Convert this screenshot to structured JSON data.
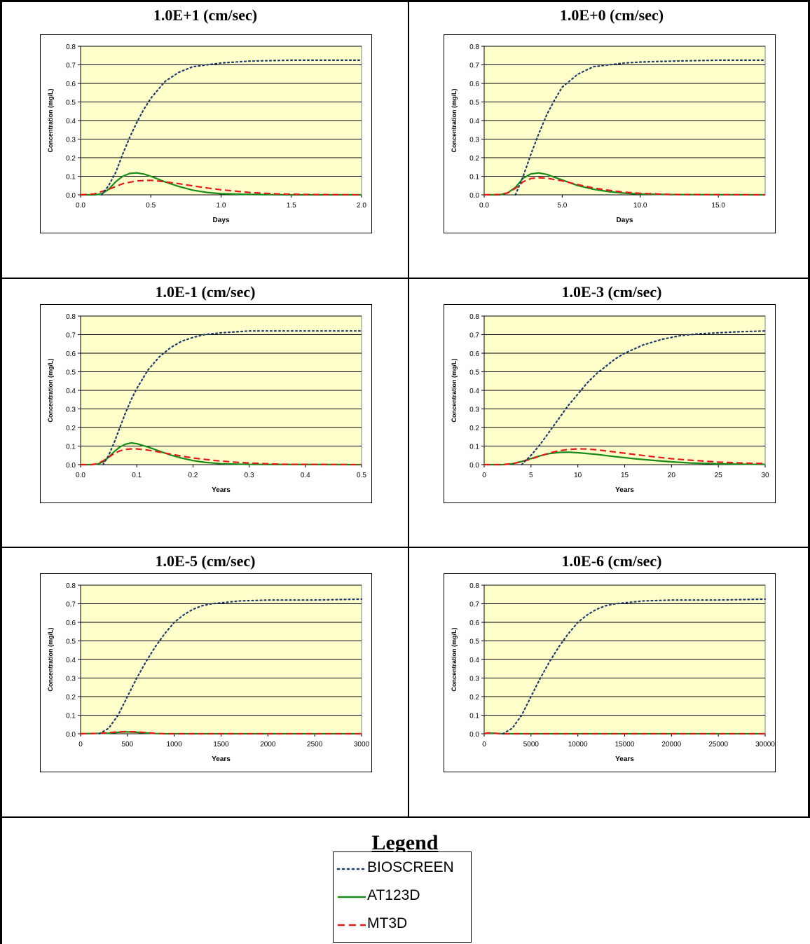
{
  "colors": {
    "plot_bg": "#FFFFCC",
    "bioscreen": "#1F3A68",
    "at123d": "#1A8A1A",
    "mt3d": "#E01B1B",
    "gridline": "#000000"
  },
  "legend": {
    "title": "Legend",
    "items": [
      {
        "label": "BIOSCREEN",
        "style": "dotted",
        "color": "#1F3A68"
      },
      {
        "label": "AT123D",
        "style": "solid",
        "color": "#1A8A1A"
      },
      {
        "label": "MT3D",
        "style": "dashed",
        "color": "#E01B1B"
      }
    ]
  },
  "chart_data": [
    {
      "type": "line",
      "title": "1.0E+1 (cm/sec)",
      "xlabel": "Days",
      "ylabel": "Concentration (mg/L)",
      "xlim": [
        0,
        2
      ],
      "ylim": [
        0,
        0.8
      ],
      "xticks": [
        0,
        0.5,
        1,
        1.5,
        2
      ],
      "xtick_labels": [
        "0.0",
        "0.5",
        "1.0",
        "1.5",
        "2.0"
      ],
      "yticks": [
        0,
        0.1,
        0.2,
        0.3,
        0.4,
        0.5,
        0.6,
        0.7,
        0.8
      ],
      "ytick_labels": [
        "0.0",
        "0.1",
        "0.2",
        "0.3",
        "0.4",
        "0.5",
        "0.6",
        "0.7",
        "0.8"
      ],
      "series": [
        {
          "name": "BIOSCREEN",
          "x": [
            0.15,
            0.2,
            0.25,
            0.3,
            0.35,
            0.4,
            0.45,
            0.5,
            0.6,
            0.7,
            0.8,
            0.9,
            1.0,
            1.2,
            1.5,
            2.0
          ],
          "y": [
            0.0,
            0.05,
            0.12,
            0.22,
            0.31,
            0.39,
            0.46,
            0.52,
            0.61,
            0.66,
            0.69,
            0.7,
            0.71,
            0.72,
            0.725,
            0.725
          ]
        },
        {
          "name": "AT123D",
          "x": [
            0.0,
            0.1,
            0.15,
            0.2,
            0.25,
            0.3,
            0.35,
            0.4,
            0.45,
            0.5,
            0.6,
            0.7,
            0.8,
            0.9,
            1.0,
            1.2,
            1.5,
            2.0
          ],
          "y": [
            0.0,
            0.0,
            0.005,
            0.03,
            0.07,
            0.1,
            0.115,
            0.118,
            0.112,
            0.1,
            0.07,
            0.045,
            0.025,
            0.013,
            0.006,
            0.002,
            0.0,
            0.0
          ]
        },
        {
          "name": "MT3D",
          "x": [
            0.0,
            0.1,
            0.2,
            0.3,
            0.4,
            0.5,
            0.6,
            0.7,
            0.8,
            0.9,
            1.0,
            1.2,
            1.4,
            1.6,
            2.0
          ],
          "y": [
            0.0,
            0.005,
            0.03,
            0.06,
            0.075,
            0.078,
            0.07,
            0.06,
            0.048,
            0.037,
            0.027,
            0.013,
            0.005,
            0.002,
            0.0
          ]
        }
      ]
    },
    {
      "type": "line",
      "title": "1.0E+0 (cm/sec)",
      "xlabel": "Days",
      "ylabel": "Concentration (mg/L)",
      "xlim": [
        0,
        18
      ],
      "ylim": [
        0,
        0.8
      ],
      "xticks": [
        0,
        5,
        10,
        15
      ],
      "xtick_labels": [
        "0.0",
        "5.0",
        "10.0",
        "15.0"
      ],
      "yticks": [
        0,
        0.1,
        0.2,
        0.3,
        0.4,
        0.5,
        0.6,
        0.7,
        0.8
      ],
      "ytick_labels": [
        "0.0",
        "0.1",
        "0.2",
        "0.3",
        "0.4",
        "0.5",
        "0.6",
        "0.7",
        "0.8"
      ],
      "series": [
        {
          "name": "BIOSCREEN",
          "x": [
            2.0,
            2.5,
            3.0,
            3.5,
            4.0,
            4.5,
            5.0,
            6.0,
            7.0,
            8.0,
            9.0,
            10.0,
            12.0,
            15.0,
            18.0
          ],
          "y": [
            0.0,
            0.1,
            0.22,
            0.33,
            0.43,
            0.51,
            0.58,
            0.65,
            0.69,
            0.7,
            0.71,
            0.715,
            0.72,
            0.725,
            0.725
          ]
        },
        {
          "name": "AT123D",
          "x": [
            0.0,
            1.0,
            1.5,
            2.0,
            2.5,
            3.0,
            3.5,
            4.0,
            5.0,
            6.0,
            7.0,
            8.0,
            9.0,
            10.0,
            12.0,
            18.0
          ],
          "y": [
            0.0,
            0.0,
            0.01,
            0.04,
            0.09,
            0.113,
            0.118,
            0.11,
            0.08,
            0.05,
            0.03,
            0.017,
            0.009,
            0.004,
            0.001,
            0.0
          ]
        },
        {
          "name": "MT3D",
          "x": [
            0.0,
            1.0,
            1.5,
            2.0,
            2.5,
            3.0,
            3.5,
            4.0,
            5.0,
            6.0,
            7.0,
            8.0,
            9.0,
            10.0,
            12.0,
            18.0
          ],
          "y": [
            0.0,
            0.002,
            0.01,
            0.035,
            0.07,
            0.088,
            0.092,
            0.09,
            0.075,
            0.055,
            0.037,
            0.024,
            0.014,
            0.008,
            0.002,
            0.0
          ]
        }
      ]
    },
    {
      "type": "line",
      "title": "1.0E-1 (cm/sec)",
      "xlabel": "Years",
      "ylabel": "Concentration (mg/L)",
      "xlim": [
        0,
        0.5
      ],
      "ylim": [
        0,
        0.8
      ],
      "xticks": [
        0,
        0.1,
        0.2,
        0.3,
        0.4,
        0.5
      ],
      "xtick_labels": [
        "0.0",
        "0.1",
        "0.2",
        "0.3",
        "0.4",
        "0.5"
      ],
      "yticks": [
        0,
        0.1,
        0.2,
        0.3,
        0.4,
        0.5,
        0.6,
        0.7,
        0.8
      ],
      "ytick_labels": [
        "0.0",
        "0.1",
        "0.2",
        "0.3",
        "0.4",
        "0.5",
        "0.6",
        "0.7",
        "0.8"
      ],
      "series": [
        {
          "name": "BIOSCREEN",
          "x": [
            0.04,
            0.05,
            0.06,
            0.07,
            0.08,
            0.09,
            0.1,
            0.12,
            0.14,
            0.16,
            0.18,
            0.2,
            0.22,
            0.25,
            0.3,
            0.4,
            0.5
          ],
          "y": [
            0.0,
            0.05,
            0.12,
            0.2,
            0.28,
            0.35,
            0.41,
            0.51,
            0.58,
            0.63,
            0.665,
            0.685,
            0.7,
            0.71,
            0.72,
            0.72,
            0.72
          ]
        },
        {
          "name": "AT123D",
          "x": [
            0.0,
            0.02,
            0.03,
            0.04,
            0.05,
            0.06,
            0.07,
            0.08,
            0.09,
            0.1,
            0.12,
            0.14,
            0.16,
            0.18,
            0.2,
            0.22,
            0.25,
            0.3,
            0.5
          ],
          "y": [
            0.0,
            0.0,
            0.003,
            0.015,
            0.04,
            0.07,
            0.095,
            0.11,
            0.117,
            0.113,
            0.095,
            0.073,
            0.052,
            0.035,
            0.022,
            0.013,
            0.005,
            0.001,
            0.0
          ]
        },
        {
          "name": "MT3D",
          "x": [
            0.0,
            0.02,
            0.03,
            0.04,
            0.05,
            0.06,
            0.07,
            0.08,
            0.09,
            0.1,
            0.12,
            0.14,
            0.16,
            0.18,
            0.2,
            0.24,
            0.28,
            0.32,
            0.36,
            0.5
          ],
          "y": [
            0.0,
            0.0,
            0.005,
            0.02,
            0.04,
            0.06,
            0.074,
            0.082,
            0.085,
            0.085,
            0.078,
            0.068,
            0.057,
            0.046,
            0.036,
            0.022,
            0.012,
            0.006,
            0.002,
            0.0
          ]
        }
      ]
    },
    {
      "type": "line",
      "title": "1.0E-3 (cm/sec)",
      "xlabel": "Years",
      "ylabel": "Concentration (mg/L)",
      "xlim": [
        0,
        30
      ],
      "ylim": [
        0,
        0.8
      ],
      "xticks": [
        0,
        5,
        10,
        15,
        20,
        25,
        30
      ],
      "xtick_labels": [
        "0",
        "5",
        "10",
        "15",
        "20",
        "25",
        "30"
      ],
      "yticks": [
        0,
        0.1,
        0.2,
        0.3,
        0.4,
        0.5,
        0.6,
        0.7,
        0.8
      ],
      "ytick_labels": [
        "0.0",
        "0.1",
        "0.2",
        "0.3",
        "0.4",
        "0.5",
        "0.6",
        "0.7",
        "0.8"
      ],
      "series": [
        {
          "name": "BIOSCREEN",
          "x": [
            4.0,
            5.0,
            6.0,
            7.0,
            8.0,
            9.0,
            10.0,
            11.0,
            12.0,
            13.0,
            14.0,
            15.0,
            17.0,
            19.0,
            21.0,
            23.0,
            25.0,
            27.0,
            30.0
          ],
          "y": [
            0.0,
            0.05,
            0.11,
            0.18,
            0.25,
            0.32,
            0.38,
            0.44,
            0.49,
            0.53,
            0.57,
            0.6,
            0.645,
            0.675,
            0.695,
            0.705,
            0.71,
            0.715,
            0.72
          ]
        },
        {
          "name": "AT123D",
          "x": [
            0,
            2,
            3,
            4,
            5,
            6,
            7,
            8,
            9,
            10,
            12,
            14,
            16,
            18,
            20,
            22,
            25,
            30
          ],
          "y": [
            0.0,
            0.0,
            0.005,
            0.017,
            0.033,
            0.048,
            0.06,
            0.066,
            0.067,
            0.064,
            0.055,
            0.043,
            0.032,
            0.023,
            0.015,
            0.009,
            0.004,
            0.001
          ]
        },
        {
          "name": "MT3D",
          "x": [
            0,
            2,
            3,
            4,
            5,
            6,
            7,
            8,
            9,
            10,
            11,
            12,
            14,
            16,
            18,
            20,
            22,
            25,
            28,
            30
          ],
          "y": [
            0.0,
            0.0,
            0.005,
            0.015,
            0.03,
            0.047,
            0.063,
            0.075,
            0.082,
            0.085,
            0.084,
            0.08,
            0.068,
            0.055,
            0.043,
            0.032,
            0.024,
            0.014,
            0.008,
            0.006
          ]
        }
      ]
    },
    {
      "type": "line",
      "title": "1.0E-5 (cm/sec)",
      "xlabel": "Years",
      "ylabel": "Concentration (mg/L)",
      "xlim": [
        0,
        3000
      ],
      "ylim": [
        0,
        0.8
      ],
      "xticks": [
        0,
        500,
        1000,
        1500,
        2000,
        2500,
        3000
      ],
      "xtick_labels": [
        "0",
        "500",
        "1000",
        "1500",
        "2000",
        "2500",
        "3000"
      ],
      "yticks": [
        0,
        0.1,
        0.2,
        0.3,
        0.4,
        0.5,
        0.6,
        0.7,
        0.8
      ],
      "ytick_labels": [
        "0.0",
        "0.1",
        "0.2",
        "0.3",
        "0.4",
        "0.5",
        "0.6",
        "0.7",
        "0.8"
      ],
      "series": [
        {
          "name": "BIOSCREEN",
          "x": [
            200,
            300,
            400,
            500,
            600,
            700,
            800,
            900,
            1000,
            1100,
            1200,
            1300,
            1400,
            1500,
            1700,
            2000,
            2500,
            3000
          ],
          "y": [
            0.0,
            0.03,
            0.1,
            0.2,
            0.3,
            0.39,
            0.47,
            0.54,
            0.6,
            0.64,
            0.67,
            0.69,
            0.7,
            0.705,
            0.715,
            0.72,
            0.72,
            0.725
          ]
        },
        {
          "name": "AT123D",
          "x": [
            0,
            300,
            400,
            500,
            600,
            700,
            800,
            900,
            3000
          ],
          "y": [
            0.0,
            0.003,
            0.008,
            0.01,
            0.008,
            0.004,
            0.001,
            0.0,
            0.0
          ]
        },
        {
          "name": "MT3D",
          "x": [
            0,
            200,
            300,
            400,
            500,
            600,
            700,
            800,
            900,
            3000
          ],
          "y": [
            0.0,
            0.002,
            0.006,
            0.01,
            0.012,
            0.01,
            0.006,
            0.002,
            0.0,
            0.0
          ]
        }
      ]
    },
    {
      "type": "line",
      "title": "1.0E-6 (cm/sec)",
      "xlabel": "Years",
      "ylabel": "Concentration (mg/L)",
      "xlim": [
        0,
        30000
      ],
      "ylim": [
        0,
        0.8
      ],
      "xticks": [
        0,
        5000,
        10000,
        15000,
        20000,
        25000,
        30000
      ],
      "xtick_labels": [
        "0",
        "5000",
        "10000",
        "15000",
        "20000",
        "25000",
        "30000"
      ],
      "yticks": [
        0,
        0.1,
        0.2,
        0.3,
        0.4,
        0.5,
        0.6,
        0.7,
        0.8
      ],
      "ytick_labels": [
        "0.0",
        "0.1",
        "0.2",
        "0.3",
        "0.4",
        "0.5",
        "0.6",
        "0.7",
        "0.8"
      ],
      "series": [
        {
          "name": "BIOSCREEN",
          "x": [
            2000,
            3000,
            4000,
            5000,
            6000,
            7000,
            8000,
            9000,
            10000,
            11000,
            12000,
            13000,
            14000,
            15000,
            17000,
            20000,
            25000,
            30000
          ],
          "y": [
            0.0,
            0.03,
            0.1,
            0.2,
            0.3,
            0.39,
            0.47,
            0.54,
            0.6,
            0.64,
            0.67,
            0.69,
            0.7,
            0.705,
            0.715,
            0.72,
            0.72,
            0.725
          ]
        },
        {
          "name": "AT123D",
          "x": [
            0,
            500,
            1000,
            1500,
            2000,
            30000
          ],
          "y": [
            0.0,
            0.003,
            0.003,
            0.001,
            0.0,
            0.0
          ]
        },
        {
          "name": "MT3D",
          "x": [
            0,
            300,
            800,
            1300,
            1800,
            30000
          ],
          "y": [
            0.0,
            0.004,
            0.004,
            0.002,
            0.0,
            0.0
          ]
        }
      ]
    }
  ]
}
